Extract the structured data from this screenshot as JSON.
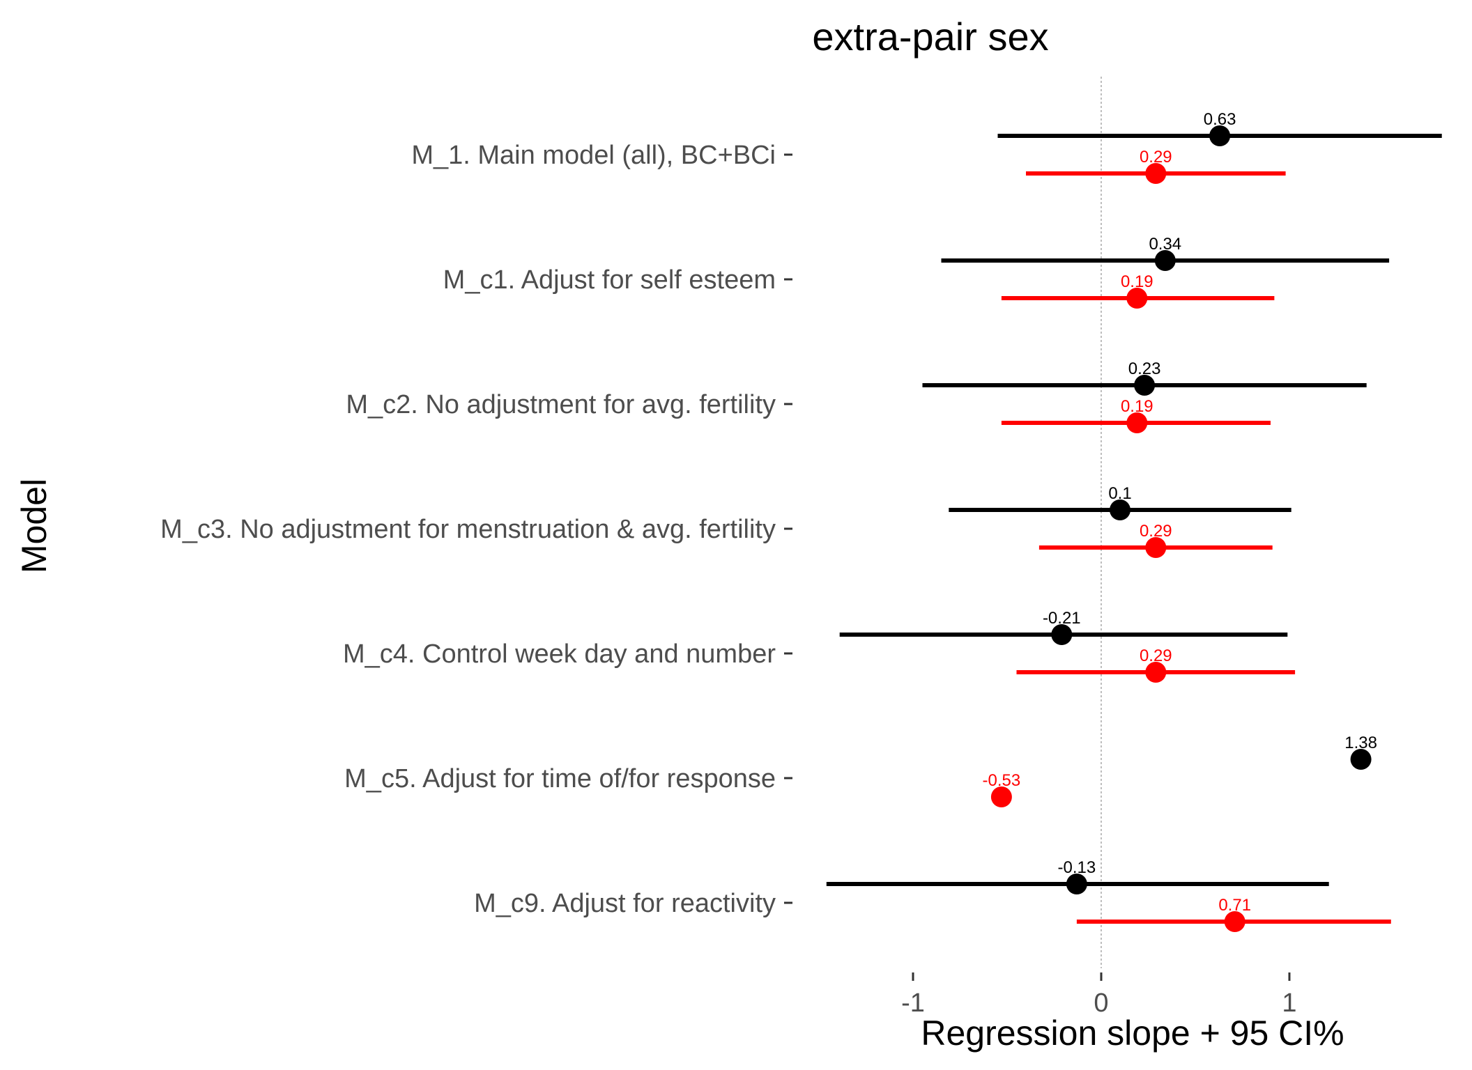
{
  "chart_data": {
    "type": "forest",
    "title": "extra-pair sex",
    "xlabel": "Regression slope + 95 CI%",
    "ylabel": "Model",
    "xlim": [
      -1.5,
      1.85
    ],
    "xticks": [
      -1,
      0,
      1
    ],
    "xtick_labels": [
      "-1",
      "0",
      "1"
    ],
    "reference_line": 0,
    "grid": false,
    "models": [
      "M_1. Main model (all), BC+BCi",
      "M_c1. Adjust for self esteem",
      "M_c2. No adjustment for avg. fertility",
      "M_c3. No adjustment for menstruation & avg. fertility",
      "M_c4. Control week day and number",
      "M_c5. Adjust for time of/for response",
      "M_c9. Adjust for reactivity"
    ],
    "series": [
      {
        "color": "#000000",
        "estimates": [
          0.63,
          0.34,
          0.23,
          0.1,
          -0.21,
          1.38,
          -0.13
        ],
        "labels": [
          "0.63",
          "0.34",
          "0.23",
          "0.1",
          "-0.21",
          "1.38",
          "-0.13"
        ],
        "ci_lower": [
          -0.55,
          -0.85,
          -0.95,
          -0.81,
          -1.39,
          null,
          -1.46
        ],
        "ci_upper": [
          1.81,
          1.53,
          1.41,
          1.01,
          0.99,
          null,
          1.21
        ]
      },
      {
        "color": "#ff0000",
        "estimates": [
          0.29,
          0.19,
          0.19,
          0.29,
          0.29,
          -0.53,
          0.71
        ],
        "labels": [
          "0.29",
          "0.19",
          "0.19",
          "0.29",
          "0.29",
          "-0.53",
          "0.71"
        ],
        "ci_lower": [
          -0.4,
          -0.53,
          -0.53,
          -0.33,
          -0.45,
          null,
          -0.13
        ],
        "ci_upper": [
          0.98,
          0.92,
          0.9,
          0.91,
          1.03,
          null,
          1.54
        ]
      }
    ]
  }
}
